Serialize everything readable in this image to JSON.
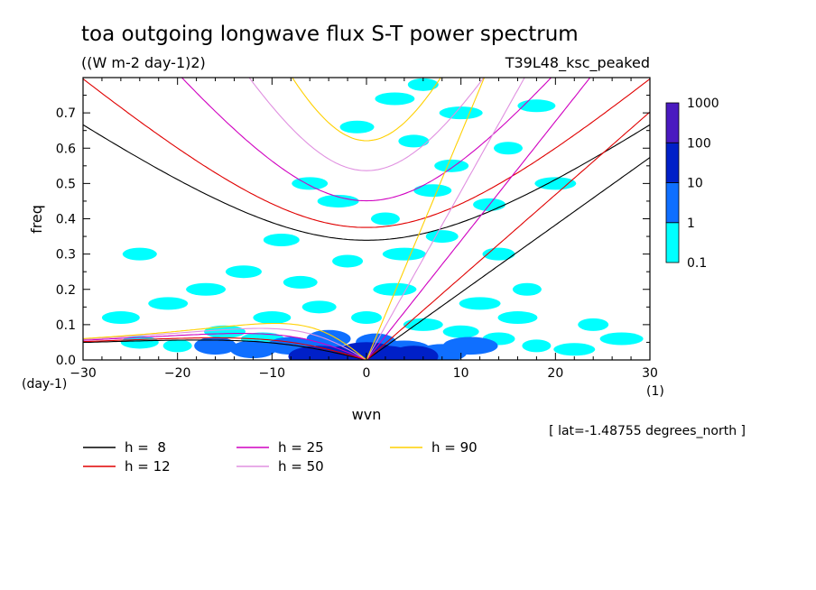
{
  "chart_data": {
    "type": "heatmap",
    "title": "toa outgoing longwave flux S-T power spectrum",
    "subtitle": "((W m-2 day-1)2)",
    "dataset_label": "T39L48_ksc_peaked",
    "xlabel": "wvn",
    "ylabel": "freq",
    "x_unit": "(1)",
    "y_unit": "(day-1)",
    "xlim": [
      -30,
      30
    ],
    "ylim": [
      0,
      0.8
    ],
    "x_ticks": [
      "-30",
      "-20",
      "-10",
      "0",
      "10",
      "20",
      "30"
    ],
    "y_ticks": [
      "0.0",
      "0.1",
      "0.2",
      "0.3",
      "0.4",
      "0.5",
      "0.6",
      "0.7"
    ],
    "latitude_note": "[ lat=-1.48755 degrees_north ]",
    "colorbar": {
      "levels": [
        "0.1",
        "1",
        "10",
        "100",
        "1000"
      ],
      "colors": [
        "#00ffff",
        "#0f6fff",
        "#0020c8",
        "#4a1ac0"
      ]
    },
    "dispersion_curves": [
      {
        "label": "h =  8",
        "h": 8,
        "color": "#000000"
      },
      {
        "label": "h = 12",
        "h": 12,
        "color": "#e00000"
      },
      {
        "label": "h = 25",
        "h": 25,
        "color": "#d000c0"
      },
      {
        "label": "h = 50",
        "h": 50,
        "color": "#e090e0"
      },
      {
        "label": "h = 90",
        "h": 90,
        "color": "#ffd000"
      }
    ],
    "curve_families": [
      "equatorial-rossby",
      "kelvin",
      "inertia-gravity"
    ],
    "power_regions": [
      {
        "wvn": 0,
        "freq": 0.02,
        "level": "100"
      },
      {
        "wvn": 2,
        "freq": 0.01,
        "level": "100"
      },
      {
        "wvn": -2,
        "freq": 0.01,
        "level": "100"
      },
      {
        "wvn": 5,
        "freq": 0.01,
        "level": "100"
      },
      {
        "wvn": -5,
        "freq": 0.01,
        "level": "100"
      },
      {
        "wvn": -8,
        "freq": 0.04,
        "level": "10"
      },
      {
        "wvn": -4,
        "freq": 0.06,
        "level": "10"
      },
      {
        "wvn": 1,
        "freq": 0.05,
        "level": "10"
      },
      {
        "wvn": 4,
        "freq": 0.03,
        "level": "10"
      },
      {
        "wvn": 8,
        "freq": 0.02,
        "level": "10"
      },
      {
        "wvn": -12,
        "freq": 0.03,
        "level": "10"
      },
      {
        "wvn": -16,
        "freq": 0.04,
        "level": "10"
      },
      {
        "wvn": 11,
        "freq": 0.04,
        "level": "10"
      },
      {
        "wvn": -20,
        "freq": 0.04,
        "level": "1"
      },
      {
        "wvn": -15,
        "freq": 0.08,
        "level": "1"
      },
      {
        "wvn": -10,
        "freq": 0.12,
        "level": "1"
      },
      {
        "wvn": -5,
        "freq": 0.15,
        "level": "1"
      },
      {
        "wvn": 0,
        "freq": 0.12,
        "level": "1"
      },
      {
        "wvn": 3,
        "freq": 0.2,
        "level": "1"
      },
      {
        "wvn": 6,
        "freq": 0.1,
        "level": "1"
      },
      {
        "wvn": 10,
        "freq": 0.08,
        "level": "1"
      },
      {
        "wvn": 14,
        "freq": 0.06,
        "level": "1"
      },
      {
        "wvn": 18,
        "freq": 0.04,
        "level": "1"
      },
      {
        "wvn": 22,
        "freq": 0.03,
        "level": "1"
      },
      {
        "wvn": -24,
        "freq": 0.05,
        "level": "1"
      },
      {
        "wvn": -7,
        "freq": 0.22,
        "level": "1"
      },
      {
        "wvn": -2,
        "freq": 0.28,
        "level": "1"
      },
      {
        "wvn": 4,
        "freq": 0.3,
        "level": "1"
      },
      {
        "wvn": -17,
        "freq": 0.2,
        "level": "1"
      },
      {
        "wvn": -13,
        "freq": 0.25,
        "level": "1"
      },
      {
        "wvn": 8,
        "freq": 0.35,
        "level": "1"
      },
      {
        "wvn": 2,
        "freq": 0.4,
        "level": "1"
      },
      {
        "wvn": -3,
        "freq": 0.45,
        "level": "1"
      },
      {
        "wvn": 7,
        "freq": 0.48,
        "level": "1"
      },
      {
        "wvn": 9,
        "freq": 0.55,
        "level": "1"
      },
      {
        "wvn": 5,
        "freq": 0.62,
        "level": "1"
      },
      {
        "wvn": 10,
        "freq": 0.7,
        "level": "1"
      },
      {
        "wvn": 3,
        "freq": 0.74,
        "level": "1"
      },
      {
        "wvn": -6,
        "freq": 0.5,
        "level": "1"
      },
      {
        "wvn": 14,
        "freq": 0.3,
        "level": "1"
      },
      {
        "wvn": 17,
        "freq": 0.2,
        "level": "1"
      },
      {
        "wvn": 12,
        "freq": 0.16,
        "level": "1"
      },
      {
        "wvn": -26,
        "freq": 0.12,
        "level": "1"
      },
      {
        "wvn": -24,
        "freq": 0.3,
        "level": "1"
      },
      {
        "wvn": 24,
        "freq": 0.1,
        "level": "1"
      },
      {
        "wvn": 27,
        "freq": 0.06,
        "level": "1"
      },
      {
        "wvn": -21,
        "freq": 0.16,
        "level": "1"
      },
      {
        "wvn": -9,
        "freq": 0.34,
        "level": "1"
      },
      {
        "wvn": 13,
        "freq": 0.44,
        "level": "1"
      },
      {
        "wvn": 15,
        "freq": 0.6,
        "level": "1"
      },
      {
        "wvn": 20,
        "freq": 0.5,
        "level": "1"
      },
      {
        "wvn": 18,
        "freq": 0.72,
        "level": "1"
      },
      {
        "wvn": -1,
        "freq": 0.66,
        "level": "1"
      },
      {
        "wvn": 6,
        "freq": 0.78,
        "level": "1"
      },
      {
        "wvn": -11,
        "freq": 0.06,
        "level": "1"
      },
      {
        "wvn": 16,
        "freq": 0.12,
        "level": "1"
      }
    ]
  }
}
